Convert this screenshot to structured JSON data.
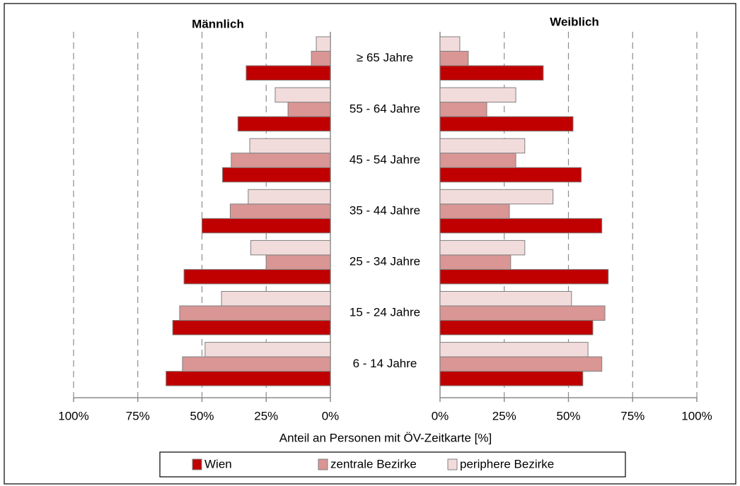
{
  "chart_data": {
    "type": "bar",
    "orientation": "horizontal",
    "xlabel": "Anteil an Personen mit ÖV-Zeitkarte [%]",
    "categories": [
      "≥ 65 Jahre",
      "55 - 64 Jahre",
      "45 - 54 Jahre",
      "35 - 44 Jahre",
      "25 - 34 Jahre",
      "15 - 24 Jahre",
      "6 - 14 Jahre"
    ],
    "series": [
      {
        "name": "Wien",
        "color": "#c00000"
      },
      {
        "name": "zentrale Bezirke",
        "color": "#d99694"
      },
      {
        "name": "periphere Bezirke",
        "color": "#f2dcdb"
      }
    ],
    "grid": true,
    "panels": [
      {
        "title": "Männlich",
        "xlim": [
          100,
          0
        ],
        "xticks": [
          {
            "value": 100,
            "label": "100%"
          },
          {
            "value": 75,
            "label": "75%"
          },
          {
            "value": 50,
            "label": "50%"
          },
          {
            "value": 25,
            "label": "25%"
          },
          {
            "value": 0,
            "label": "0%"
          }
        ],
        "series": [
          {
            "values": [
              32.8,
              36,
              42,
              50,
              57,
              61.4,
              64
            ]
          },
          {
            "values": [
              7.4,
              16.5,
              38.6,
              39,
              25,
              58.7,
              57.6
            ]
          },
          {
            "values": [
              5.5,
              21.5,
              31.4,
              32,
              31,
              42.4,
              48.8
            ]
          }
        ]
      },
      {
        "title": "Weiblich",
        "xlim": [
          0,
          100
        ],
        "xticks": [
          {
            "value": 0,
            "label": "0%"
          },
          {
            "value": 25,
            "label": "25%"
          },
          {
            "value": 50,
            "label": "50%"
          },
          {
            "value": 75,
            "label": "75%"
          },
          {
            "value": 100,
            "label": "100%"
          }
        ],
        "series": [
          {
            "values": [
              40.2,
              51.8,
              55,
              63,
              65.5,
              59.5,
              55.6
            ]
          },
          {
            "values": [
              11,
              18.2,
              29.5,
              27,
              27.5,
              64.2,
              63
            ]
          },
          {
            "values": [
              7.7,
              29.5,
              33,
              44,
              33,
              51.2,
              57.6
            ]
          }
        ]
      }
    ]
  }
}
